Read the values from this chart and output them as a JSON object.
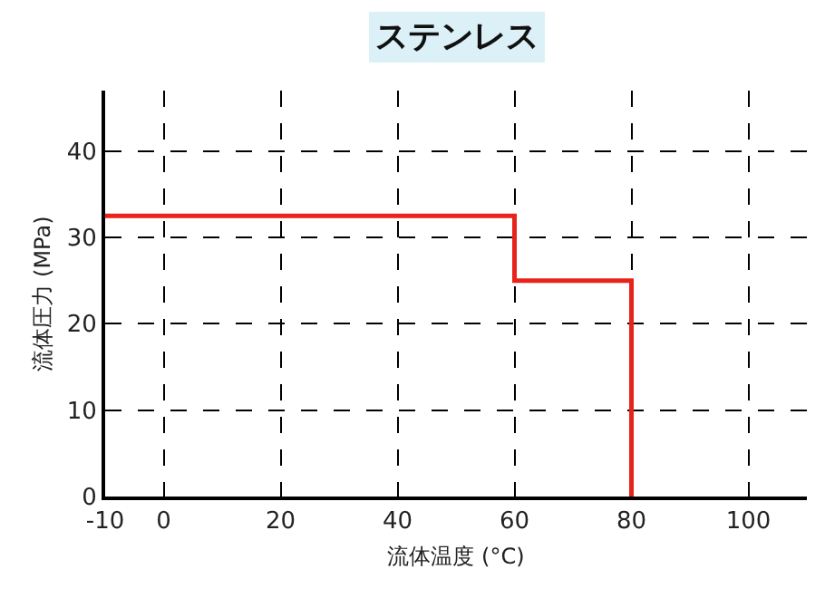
{
  "chart_data": {
    "type": "step",
    "title": "ステンレス",
    "xlabel": "流体温度 (°C)",
    "ylabel": "流体圧力 (MPa)",
    "x": [
      -10,
      60,
      80
    ],
    "values": [
      32.5,
      25,
      0
    ],
    "color": "#e8231a",
    "xlim": [
      -10,
      110
    ],
    "xticks": [
      -10,
      0,
      20,
      40,
      60,
      80,
      100
    ],
    "ylim": [
      0,
      47
    ],
    "yticks": [
      0,
      10,
      20,
      30,
      40
    ],
    "grid": true,
    "line_style": "solid",
    "marker": "none"
  }
}
